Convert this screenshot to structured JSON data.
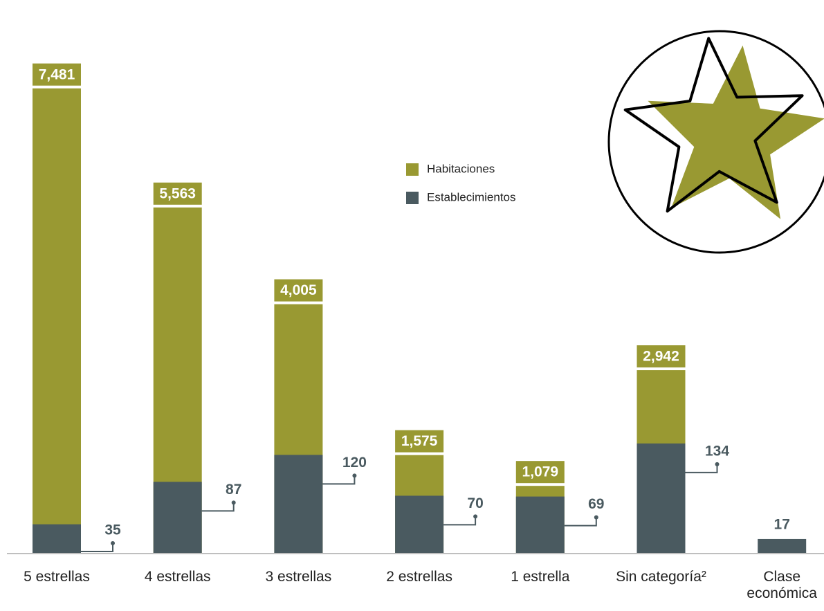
{
  "chart_data": {
    "type": "bar",
    "categories": [
      "5 estrellas",
      "4 estrellas",
      "3 estrellas",
      "2 estrellas",
      "1 estrella",
      "Sin categoría²",
      "Clase económica"
    ],
    "series": [
      {
        "name": "Habitaciones",
        "color": "#999932",
        "values": [
          7481,
          5563,
          4005,
          1575,
          1079,
          2942,
          null
        ],
        "value_labels": [
          "7,481",
          "5,563",
          "4,005",
          "1,575",
          "1,079",
          "2,942",
          null
        ]
      },
      {
        "name": "Establecimientos",
        "color": "#4a5a60",
        "axis": "y2",
        "values": [
          35,
          87,
          120,
          70,
          69,
          134,
          17
        ]
      }
    ],
    "ylim": [
      0,
      7500
    ],
    "y2lim": [
      0,
      150
    ]
  }
}
